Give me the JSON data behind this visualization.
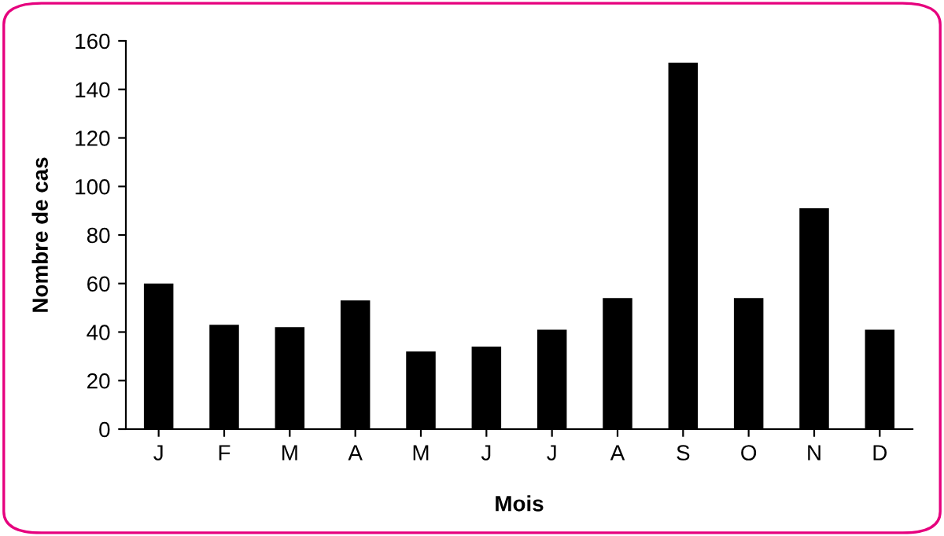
{
  "chart_data": {
    "type": "bar",
    "xlabel": "Mois",
    "ylabel": "Nombre de cas",
    "categories": [
      "J",
      "F",
      "M",
      "A",
      "M",
      "J",
      "J",
      "A",
      "S",
      "O",
      "N",
      "D"
    ],
    "values": [
      60,
      43,
      42,
      53,
      32,
      34,
      41,
      54,
      151,
      54,
      91,
      41
    ],
    "color": "#000000",
    "ylim": [
      0,
      160
    ],
    "yticks": [
      0,
      20,
      40,
      60,
      80,
      100,
      120,
      140,
      160
    ],
    "grid": false,
    "legend": false
  }
}
